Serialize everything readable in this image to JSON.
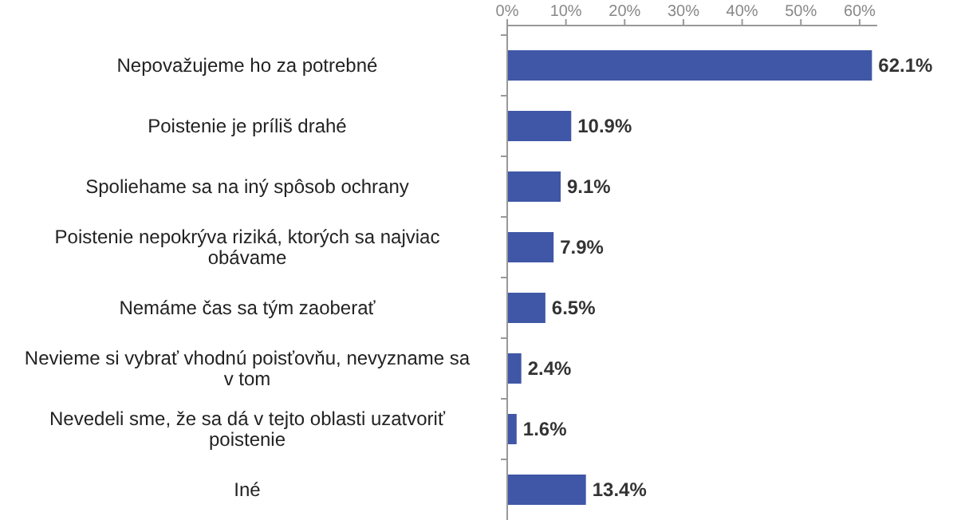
{
  "chart_data": {
    "type": "bar",
    "orientation": "horizontal",
    "categories": [
      "Nepovažujeme ho za potrebné",
      "Poistenie je príliš drahé",
      "Spoliehame sa na iný spôsob ochrany",
      "Poistenie nepokrýva riziká, ktorých sa najviac obávame",
      "Nemáme čas sa tým zaoberať",
      "Nevieme si vybrať vhodnú poisťovňu, nevyzname sa v tom",
      "Nevedeli sme, že sa dá v tejto oblasti uzatvoriť poistenie",
      "Iné"
    ],
    "values": [
      62.1,
      10.9,
      9.1,
      7.9,
      6.5,
      2.4,
      1.6,
      13.4
    ],
    "value_labels": [
      "62.1%",
      "10.9%",
      "9.1%",
      "7.9%",
      "6.5%",
      "2.4%",
      "1.6%",
      "13.4%"
    ],
    "color": "#3f57a6",
    "xlim": [
      0,
      63
    ],
    "xticks": [
      {
        "value": 0,
        "label": "0%"
      },
      {
        "value": 10,
        "label": "10%"
      },
      {
        "value": 20,
        "label": "20%"
      },
      {
        "value": 30,
        "label": "30%"
      },
      {
        "value": 40,
        "label": "40%"
      },
      {
        "value": 50,
        "label": "50%"
      },
      {
        "value": 60,
        "label": "60%"
      }
    ],
    "grid": false
  }
}
